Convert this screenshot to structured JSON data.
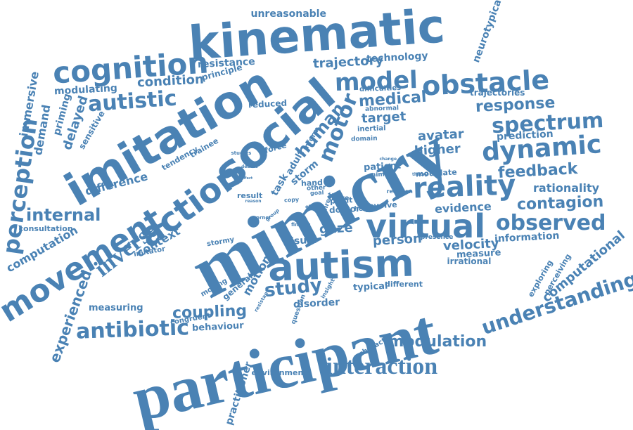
{
  "color": "#4a82b4",
  "words": [
    "participant",
    "mimicry",
    "kinematic",
    "imitation",
    "social",
    "autism",
    "virtual",
    "action",
    "movement",
    "reality",
    "cognition",
    "dynamic",
    "obstacle",
    "spectrum",
    "inverse",
    "perception",
    "motor",
    "model",
    "observed",
    "understanding",
    "interaction",
    "antibiotic",
    "autistic",
    "response",
    "study",
    "feedback",
    "contagion",
    "human",
    "internal",
    "experienced",
    "modulation",
    "coupling",
    "computational",
    "velocity",
    "medical",
    "condition",
    "trajectory",
    "person",
    "avatar",
    "target",
    "higher",
    "evidence",
    "rationality",
    "gaze",
    "difference",
    "context",
    "prediction",
    "information",
    "neurotypical",
    "unreasonable",
    "immersive",
    "demand",
    "delayed",
    "priming",
    "sensitive",
    "modulating",
    "resistance",
    "technology",
    "principle",
    "trajectories",
    "difficulties",
    "abnormal",
    "inertial",
    "domain",
    "reduced",
    "trainee",
    "tendency",
    "computation",
    "consultation",
    "imitator",
    "stormy",
    "measuring",
    "behaviour",
    "congruent",
    "moving",
    "general",
    "motion",
    "disorder",
    "typical",
    "different",
    "visual",
    "irrational",
    "measure",
    "presence",
    "exploring",
    "perceiving",
    "character",
    "environment",
    "practitioner",
    "patient",
    "modulate",
    "force",
    "storm",
    "adult",
    "task",
    "studies",
    "result",
    "debate",
    "reason",
    "mimic",
    "change",
    "theory",
    "hand",
    "other",
    "goal",
    "copy",
    "ethic",
    "point",
    "doctor",
    "more",
    "height",
    "involve",
    "reaction",
    "direct",
    "corner",
    "finding",
    "question",
    "insight",
    "resistant",
    "effect",
    "group",
    "inform"
  ]
}
